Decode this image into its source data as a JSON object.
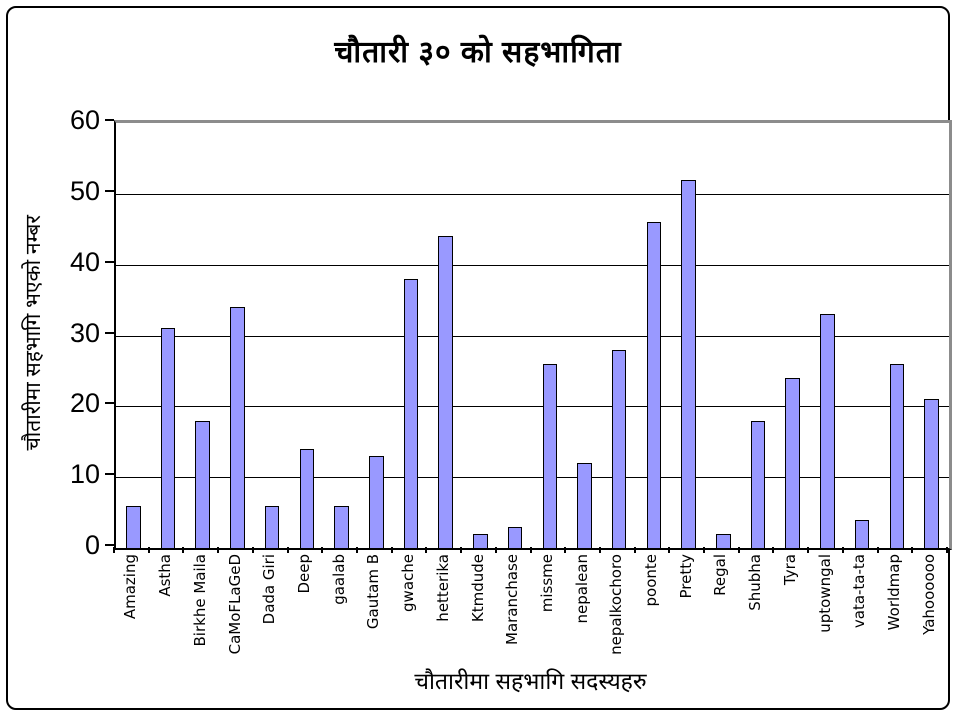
{
  "chart_data": {
    "type": "bar",
    "title": "चौतारी ३० को सहभागिता",
    "xlabel": "चौतारीमा सहभागि सदस्यहरु",
    "ylabel": "चौतारीमा सहभागि भएको नम्बर",
    "categories": [
      "Amazing",
      "Astha",
      "Birkhe Maila",
      "CaMoFLaGeD",
      "Dada Giri",
      "Deep",
      "gaalab",
      "Gautam B",
      "gwache",
      "hetterika",
      "Ktmdude",
      "Maranchase",
      "missme",
      "nepalean",
      "nepalkochoro",
      "poonte",
      "Pretty",
      "Regal",
      "Shubha",
      "Tyra",
      "uptowngal",
      "vata-ta-ta",
      "Worldmap",
      "Yahoooooo"
    ],
    "values": [
      6,
      31,
      18,
      34,
      6,
      14,
      6,
      13,
      38,
      44,
      2,
      3,
      26,
      12,
      28,
      46,
      52,
      2,
      18,
      24,
      33,
      4,
      26,
      21
    ],
    "ylim": [
      0,
      60
    ],
    "ytick_step": 10,
    "yticks": [
      0,
      10,
      20,
      30,
      40,
      50,
      60
    ],
    "grid": true,
    "legend": "none",
    "colors": {
      "bar_fill": "#9999ff",
      "bar_border": "#000000",
      "gridline": "#000000",
      "plot_border": "#8c8c8c",
      "axis_line": "#000000",
      "background": "#ffffff",
      "text": "#000000"
    }
  }
}
